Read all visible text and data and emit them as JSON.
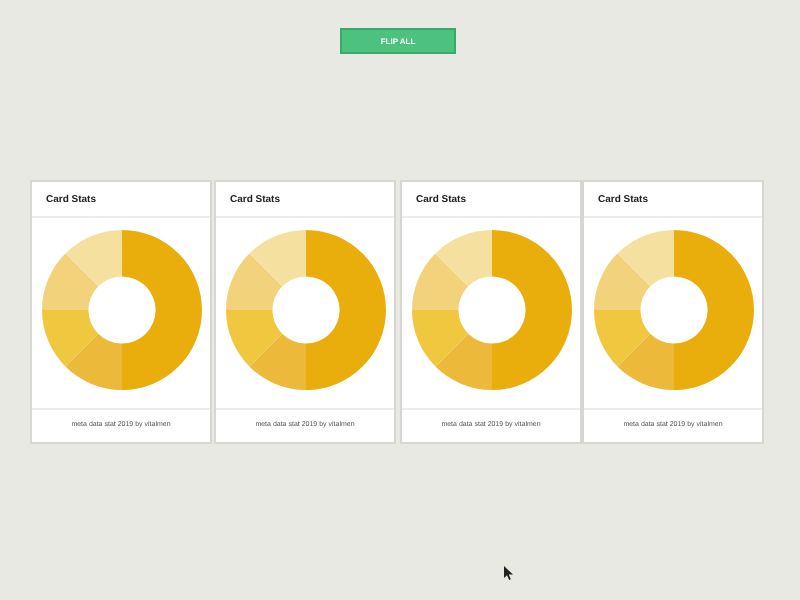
{
  "chart_data": [
    {
      "type": "other",
      "annotations": [
        "FLIP ALL"
      ]
    },
    {
      "type": "donut",
      "title": "Card Stats",
      "categories": [
        null,
        null,
        null,
        null,
        null
      ],
      "values": [
        50,
        12.5,
        12.5,
        12.5,
        12.5
      ],
      "colors": [
        "#e9ad0c",
        "#ecb93a",
        "#f0c840",
        "#f2d27a",
        "#f5e0a0"
      ],
      "annotations": [
        "meta data stat 2019 by vitalmen"
      ]
    },
    {
      "type": "donut",
      "title": "Card Stats",
      "categories": [
        null,
        null,
        null,
        null,
        null
      ],
      "values": [
        50,
        12.5,
        12.5,
        12.5,
        12.5
      ],
      "colors": [
        "#e9ad0c",
        "#ecb93a",
        "#f0c840",
        "#f2d27a",
        "#f5e0a0"
      ],
      "annotations": [
        "meta data stat 2019 by vitalmen"
      ]
    },
    {
      "type": "donut",
      "title": "Card Stats",
      "categories": [
        null,
        null,
        null,
        null,
        null
      ],
      "values": [
        50,
        12.5,
        12.5,
        12.5,
        12.5
      ],
      "colors": [
        "#e9ad0c",
        "#ecb93a",
        "#f0c840",
        "#f2d27a",
        "#f5e0a0"
      ],
      "annotations": [
        "meta data stat 2019 by vitalmen"
      ]
    },
    {
      "type": "donut",
      "title": "Card Stats",
      "categories": [
        null,
        null,
        null,
        null,
        null
      ],
      "values": [
        50,
        12.5,
        12.5,
        12.5,
        12.5
      ],
      "colors": [
        "#e9ad0c",
        "#ecb93a",
        "#f0c840",
        "#f2d27a",
        "#f5e0a0"
      ],
      "annotations": [
        "meta data stat 2019 by vitalmen"
      ]
    }
  ]
}
